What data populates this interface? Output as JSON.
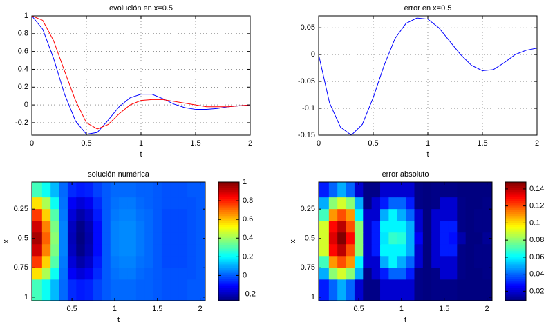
{
  "chart_data": [
    {
      "type": "line",
      "title": "evolución en x=0.5",
      "xlabel": "t",
      "x": [
        0,
        0.1,
        0.2,
        0.3,
        0.4,
        0.5,
        0.6,
        0.7,
        0.8,
        0.9,
        1.0,
        1.1,
        1.2,
        1.3,
        1.4,
        1.5,
        1.6,
        1.7,
        1.8,
        1.9,
        2.0
      ],
      "series": [
        {
          "color": "#0000ff",
          "values": [
            1,
            0.85,
            0.52,
            0.12,
            -0.18,
            -0.33,
            -0.31,
            -0.17,
            -0.02,
            0.08,
            0.12,
            0.12,
            0.07,
            0.01,
            -0.03,
            -0.05,
            -0.05,
            -0.04,
            -0.02,
            -0.01,
            0
          ]
        },
        {
          "color": "#ff0000",
          "values": [
            1,
            0.95,
            0.72,
            0.38,
            0.05,
            -0.2,
            -0.27,
            -0.22,
            -0.1,
            0,
            0.05,
            0.06,
            0.06,
            0.04,
            0.02,
            0,
            -0.02,
            -0.02,
            -0.02,
            -0.01,
            0
          ]
        }
      ],
      "xlim": [
        0,
        2
      ],
      "ylim": [
        -0.34,
        1
      ],
      "xticks": [
        0,
        0.5,
        1,
        1.5,
        2
      ],
      "yticks": [
        -0.2,
        0,
        0.2,
        0.4,
        0.6,
        0.8,
        1
      ],
      "grid": true
    },
    {
      "type": "line",
      "title": "error en x=0.5",
      "xlabel": "t",
      "x": [
        0,
        0.1,
        0.2,
        0.3,
        0.4,
        0.5,
        0.6,
        0.7,
        0.8,
        0.9,
        1.0,
        1.1,
        1.2,
        1.3,
        1.4,
        1.5,
        1.6,
        1.7,
        1.8,
        1.9,
        2.0
      ],
      "series": [
        {
          "color": "#0000ff",
          "values": [
            0,
            -0.09,
            -0.135,
            -0.15,
            -0.13,
            -0.08,
            -0.02,
            0.03,
            0.058,
            0.068,
            0.066,
            0.05,
            0.025,
            0,
            -0.02,
            -0.03,
            -0.028,
            -0.015,
            0,
            0.008,
            0.012
          ]
        }
      ],
      "xlim": [
        0,
        2
      ],
      "ylim": [
        -0.15,
        0.072
      ],
      "xticks": [
        0,
        0.5,
        1,
        1.5,
        2
      ],
      "yticks": [
        -0.15,
        -0.1,
        -0.05,
        0,
        0.05
      ],
      "grid": true
    },
    {
      "type": "heatmap",
      "title": "solución numérica",
      "xlabel": "t",
      "ylabel": "x",
      "colormap": "jet",
      "x": [
        0.1,
        0.2,
        0.3,
        0.4,
        0.5,
        0.6,
        0.7,
        0.8,
        0.9,
        1.0,
        1.1,
        1.2,
        1.3,
        1.4,
        1.5,
        1.6,
        1.7,
        1.8,
        1.9,
        2.0
      ],
      "y": [
        0.1,
        0.2,
        0.3,
        0.4,
        0.5,
        0.6,
        0.7,
        0.8,
        0.9
      ],
      "values": [
        [
          0.29,
          0.22,
          0.12,
          0.02,
          -0.06,
          -0.08,
          -0.07,
          -0.03,
          0,
          0.02,
          0.02,
          0.02,
          0.01,
          0.01,
          0,
          -0.01,
          -0.01,
          -0.01,
          0,
          0
        ],
        [
          0.56,
          0.42,
          0.22,
          0.03,
          -0.12,
          -0.16,
          -0.13,
          -0.06,
          0,
          0.03,
          0.04,
          0.04,
          0.02,
          0.01,
          0,
          -0.01,
          -0.01,
          -0.01,
          -0.01,
          0
        ],
        [
          0.77,
          0.58,
          0.31,
          0.04,
          -0.16,
          -0.22,
          -0.18,
          -0.08,
          0,
          0.04,
          0.05,
          0.05,
          0.03,
          0.02,
          0,
          -0.02,
          -0.02,
          -0.02,
          -0.01,
          0
        ],
        [
          0.9,
          0.68,
          0.36,
          0.05,
          -0.19,
          -0.26,
          -0.21,
          -0.1,
          0,
          0.05,
          0.06,
          0.06,
          0.04,
          0.02,
          0,
          -0.02,
          -0.02,
          -0.02,
          -0.01,
          0
        ],
        [
          0.95,
          0.72,
          0.38,
          0.05,
          -0.2,
          -0.27,
          -0.22,
          -0.1,
          0,
          0.05,
          0.06,
          0.06,
          0.04,
          0.02,
          0,
          -0.02,
          -0.02,
          -0.02,
          -0.01,
          0
        ],
        [
          0.9,
          0.68,
          0.36,
          0.05,
          -0.19,
          -0.26,
          -0.21,
          -0.1,
          0,
          0.05,
          0.06,
          0.06,
          0.04,
          0.02,
          0,
          -0.02,
          -0.02,
          -0.02,
          -0.01,
          0
        ],
        [
          0.77,
          0.58,
          0.31,
          0.04,
          -0.16,
          -0.22,
          -0.18,
          -0.08,
          0,
          0.04,
          0.05,
          0.05,
          0.03,
          0.02,
          0,
          -0.02,
          -0.02,
          -0.02,
          -0.01,
          0
        ],
        [
          0.56,
          0.42,
          0.22,
          0.03,
          -0.12,
          -0.16,
          -0.13,
          -0.06,
          0,
          0.03,
          0.04,
          0.04,
          0.02,
          0.01,
          0,
          -0.01,
          -0.01,
          -0.01,
          -0.01,
          0
        ],
        [
          0.29,
          0.22,
          0.12,
          0.02,
          -0.06,
          -0.08,
          -0.07,
          -0.03,
          0,
          0.02,
          0.02,
          0.02,
          0.01,
          0.01,
          0,
          -0.01,
          -0.01,
          -0.01,
          0,
          0
        ]
      ],
      "xlim": [
        0.03,
        2.06
      ],
      "ylim": [
        0.02,
        1.03
      ],
      "y_reversed": true,
      "xticks": [
        0.5,
        1,
        1.5,
        2
      ],
      "yticks": [
        0.25,
        0.5,
        0.75,
        1
      ],
      "clim": [
        -0.27,
        1
      ],
      "cticks": [
        -0.2,
        0,
        0.2,
        0.4,
        0.6,
        0.8,
        1
      ]
    },
    {
      "type": "heatmap",
      "title": "error absoluto",
      "xlabel": "t",
      "ylabel": "x",
      "colormap": "jet",
      "x": [
        0.1,
        0.2,
        0.3,
        0.4,
        0.5,
        0.6,
        0.7,
        0.8,
        0.9,
        1.0,
        1.1,
        1.2,
        1.3,
        1.4,
        1.5,
        1.6,
        1.7,
        1.8,
        1.9,
        2.0
      ],
      "y": [
        0.1,
        0.2,
        0.3,
        0.4,
        0.5,
        0.6,
        0.7,
        0.8,
        0.9
      ],
      "values": [
        [
          0.03,
          0.04,
          0.05,
          0.04,
          0.02,
          0.01,
          0.01,
          0.02,
          0.02,
          0.02,
          0.02,
          0.01,
          0,
          0.01,
          0.01,
          0.01,
          0,
          0,
          0,
          0
        ],
        [
          0.05,
          0.08,
          0.09,
          0.08,
          0.05,
          0.01,
          0.02,
          0.03,
          0.04,
          0.04,
          0.03,
          0.01,
          0,
          0.01,
          0.02,
          0.02,
          0.01,
          0,
          0,
          0.01
        ],
        [
          0.07,
          0.11,
          0.12,
          0.11,
          0.06,
          0.02,
          0.02,
          0.05,
          0.06,
          0.05,
          0.04,
          0.02,
          0,
          0.02,
          0.02,
          0.02,
          0.01,
          0,
          0.01,
          0.01
        ],
        [
          0.09,
          0.13,
          0.14,
          0.12,
          0.08,
          0.02,
          0.03,
          0.06,
          0.06,
          0.06,
          0.05,
          0.02,
          0,
          0.02,
          0.03,
          0.03,
          0.01,
          0,
          0.01,
          0.01
        ],
        [
          0.09,
          0.135,
          0.15,
          0.13,
          0.08,
          0.02,
          0.03,
          0.058,
          0.068,
          0.066,
          0.05,
          0.025,
          0,
          0.02,
          0.03,
          0.028,
          0.015,
          0,
          0.008,
          0.012
        ],
        [
          0.09,
          0.13,
          0.14,
          0.12,
          0.08,
          0.02,
          0.03,
          0.06,
          0.06,
          0.06,
          0.05,
          0.02,
          0,
          0.02,
          0.03,
          0.03,
          0.01,
          0,
          0.01,
          0.01
        ],
        [
          0.07,
          0.11,
          0.12,
          0.11,
          0.06,
          0.02,
          0.02,
          0.05,
          0.06,
          0.05,
          0.04,
          0.02,
          0,
          0.02,
          0.02,
          0.02,
          0.01,
          0,
          0.01,
          0.01
        ],
        [
          0.05,
          0.08,
          0.09,
          0.08,
          0.05,
          0.01,
          0.02,
          0.03,
          0.04,
          0.04,
          0.03,
          0.01,
          0,
          0.01,
          0.02,
          0.02,
          0.01,
          0,
          0,
          0.01
        ],
        [
          0.03,
          0.04,
          0.05,
          0.04,
          0.02,
          0.01,
          0.01,
          0.02,
          0.02,
          0.02,
          0.02,
          0.01,
          0,
          0.01,
          0.01,
          0.01,
          0,
          0,
          0,
          0
        ]
      ],
      "xlim": [
        0.03,
        2.06
      ],
      "ylim": [
        0.02,
        1.03
      ],
      "y_reversed": true,
      "xticks": [
        0.5,
        1,
        1.5,
        2
      ],
      "yticks": [
        0.25,
        0.5,
        0.75,
        1
      ],
      "clim": [
        0.009,
        0.148
      ],
      "cticks": [
        0.02,
        0.04,
        0.06,
        0.08,
        0.1,
        0.12,
        0.14
      ]
    }
  ]
}
